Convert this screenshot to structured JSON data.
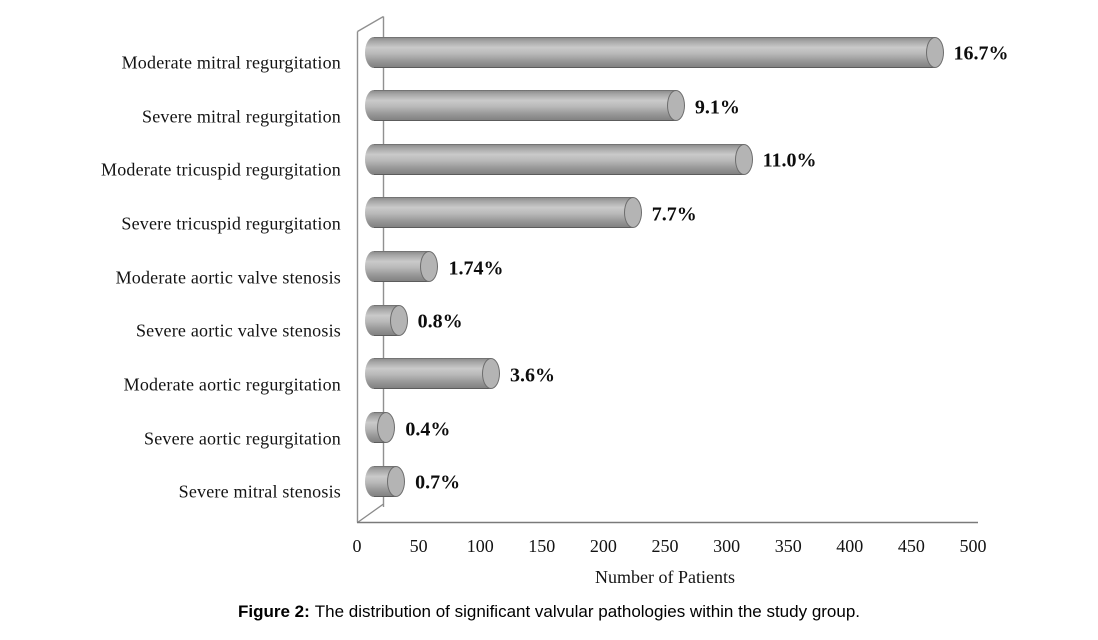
{
  "figure_caption": {
    "label": "Figure 2:",
    "text": "The distribution of significant valvular pathologies within the study group."
  },
  "chart_data": {
    "type": "bar",
    "orientation": "horizontal",
    "style": "3d-cylinder",
    "title": "",
    "xlabel": "Number of Patients",
    "ylabel": "",
    "xlim": [
      0,
      500
    ],
    "xticks": [
      0,
      50,
      100,
      150,
      200,
      250,
      300,
      350,
      400,
      450,
      500
    ],
    "grid": false,
    "legend": false,
    "bar_color": "#a9a9a9",
    "categories": [
      "Moderate mitral regurgitation",
      "Severe mitral regurgitation",
      "Moderate tricuspid regurgitation",
      "Severe tricuspid regurgitation",
      "Moderate aortic valve stenosis",
      "Severe aortic valve stenosis",
      "Moderate aortic regurgitation",
      "Severe aortic regurgitation",
      "Severe mitral stenosis"
    ],
    "series": [
      {
        "name": "Number of Patients",
        "values_patients_approx": [
          455,
          245,
          300,
          210,
          45,
          20,
          95,
          10,
          18
        ],
        "data_labels": [
          "16.7%",
          "9.1%",
          "11.0%",
          "7.7%",
          "1.74%",
          "0.8%",
          "3.6%",
          "0.4%",
          "0.7%"
        ]
      }
    ]
  }
}
